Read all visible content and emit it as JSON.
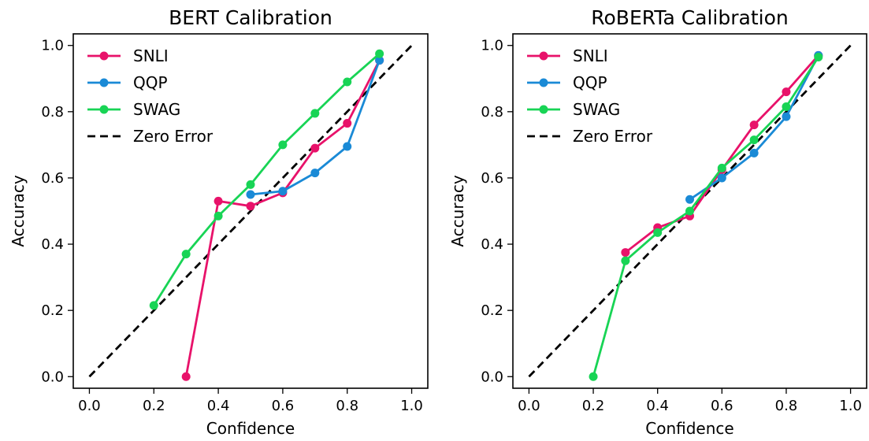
{
  "chart_data": [
    {
      "type": "line",
      "title": "BERT Calibration",
      "xlabel": "Confidence",
      "ylabel": "Accuracy",
      "xlim": [
        -0.05,
        1.05
      ],
      "ylim": [
        -0.035,
        1.035
      ],
      "xticks": [
        "0.0",
        "0.2",
        "0.4",
        "0.6",
        "0.8",
        "1.0"
      ],
      "yticks": [
        "0.0",
        "0.2",
        "0.4",
        "0.6",
        "0.8",
        "1.0"
      ],
      "grid": false,
      "legend_position": "top-left",
      "series": [
        {
          "name": "SNLI",
          "color": "#e8126a",
          "style": "solid-marker",
          "x": [
            0.3,
            0.4,
            0.5,
            0.6,
            0.7,
            0.8,
            0.9
          ],
          "y": [
            0.0,
            0.53,
            0.515,
            0.555,
            0.69,
            0.765,
            0.955
          ]
        },
        {
          "name": "QQP",
          "color": "#1a8ad6",
          "style": "solid-marker",
          "x": [
            0.5,
            0.6,
            0.7,
            0.8,
            0.9
          ],
          "y": [
            0.55,
            0.56,
            0.615,
            0.695,
            0.955
          ]
        },
        {
          "name": "SWAG",
          "color": "#18d455",
          "style": "solid-marker",
          "x": [
            0.2,
            0.3,
            0.4,
            0.5,
            0.6,
            0.7,
            0.8,
            0.9
          ],
          "y": [
            0.215,
            0.37,
            0.485,
            0.58,
            0.7,
            0.795,
            0.89,
            0.975
          ]
        },
        {
          "name": "Zero Error",
          "color": "#000000",
          "style": "dashed",
          "x": [
            0.0,
            1.0
          ],
          "y": [
            0.0,
            1.0
          ]
        }
      ]
    },
    {
      "type": "line",
      "title": "RoBERTa Calibration",
      "xlabel": "Confidence",
      "ylabel": "Accuracy",
      "xlim": [
        -0.05,
        1.05
      ],
      "ylim": [
        -0.035,
        1.035
      ],
      "xticks": [
        "0.0",
        "0.2",
        "0.4",
        "0.6",
        "0.8",
        "1.0"
      ],
      "yticks": [
        "0.0",
        "0.2",
        "0.4",
        "0.6",
        "0.8",
        "1.0"
      ],
      "grid": false,
      "legend_position": "top-left",
      "series": [
        {
          "name": "SNLI",
          "color": "#e8126a",
          "style": "solid-marker",
          "x": [
            0.3,
            0.4,
            0.5,
            0.6,
            0.7,
            0.8,
            0.9
          ],
          "y": [
            0.375,
            0.45,
            0.485,
            0.625,
            0.76,
            0.86,
            0.97
          ]
        },
        {
          "name": "QQP",
          "color": "#1a8ad6",
          "style": "solid-marker",
          "x": [
            0.5,
            0.6,
            0.7,
            0.8,
            0.9
          ],
          "y": [
            0.535,
            0.6,
            0.675,
            0.785,
            0.97
          ]
        },
        {
          "name": "SWAG",
          "color": "#18d455",
          "style": "solid-marker",
          "x": [
            0.2,
            0.3,
            0.4,
            0.5,
            0.6,
            0.7,
            0.8,
            0.9
          ],
          "y": [
            0.0,
            0.35,
            0.435,
            0.5,
            0.63,
            0.715,
            0.815,
            0.965
          ]
        },
        {
          "name": "Zero Error",
          "color": "#000000",
          "style": "dashed",
          "x": [
            0.0,
            1.0
          ],
          "y": [
            0.0,
            1.0
          ]
        }
      ]
    }
  ]
}
